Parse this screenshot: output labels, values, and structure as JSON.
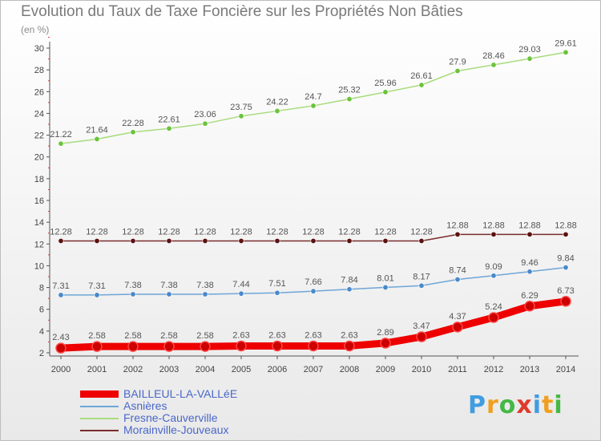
{
  "title": "Evolution du Taux de Taxe Foncière sur les Propriétés Non Bâties",
  "unit_label": "(en %)",
  "brand": {
    "text": "Proxiti",
    "letter_colors": [
      "#3f9de0",
      "#f0a020",
      "#45b845",
      "#e03a2a",
      "#3f9de0",
      "#f0a020",
      "#45b845"
    ]
  },
  "chart_data": {
    "type": "line",
    "title": "Evolution du Taux de Taxe Foncière sur les Propriétés Non Bâties",
    "ylabel": "(en %)",
    "xlabel": "",
    "ylim": [
      2,
      30
    ],
    "y_ticks": [
      2,
      4,
      6,
      8,
      10,
      12,
      14,
      16,
      18,
      20,
      22,
      24,
      26,
      28,
      30
    ],
    "grid": false,
    "legend_position": "bottom-left",
    "x": [
      "2000",
      "2001",
      "2002",
      "2003",
      "2004",
      "2005",
      "2006",
      "2007",
      "2008",
      "2009",
      "2010",
      "2011",
      "2012",
      "2013",
      "2014"
    ],
    "series": [
      {
        "name": "BAILLEUL-LA-VALLéE",
        "color": "#ee0000",
        "marker": "#cc0000",
        "emphasis": true,
        "values": [
          2.43,
          2.58,
          2.58,
          2.58,
          2.58,
          2.63,
          2.63,
          2.63,
          2.63,
          2.89,
          3.47,
          4.37,
          5.24,
          6.29,
          6.73
        ],
        "labels": [
          "2.43",
          "2.58",
          "2.58",
          "2.58",
          "2.58",
          "2.63",
          "2.63",
          "2.63",
          "2.63",
          "2.89",
          "3.47",
          "4.37",
          "5.24",
          "6.29",
          "6.73"
        ]
      },
      {
        "name": "Asnières",
        "color": "#6ea6d8",
        "marker": "#4a88c8",
        "values": [
          7.31,
          7.31,
          7.38,
          7.38,
          7.38,
          7.44,
          7.51,
          7.66,
          7.84,
          8.01,
          8.17,
          8.74,
          9.09,
          9.46,
          9.84
        ],
        "labels": [
          "7.31",
          "7.31",
          "7.38",
          "7.38",
          "7.38",
          "7.44",
          "7.51",
          "7.66",
          "7.84",
          "8.01",
          "8.17",
          "8.74",
          "9.09",
          "9.46",
          "9.84"
        ]
      },
      {
        "name": "Fresne-Cauverville",
        "color": "#a8dc7c",
        "marker": "#6cc23c",
        "values": [
          21.22,
          21.64,
          22.28,
          22.61,
          23.06,
          23.75,
          24.22,
          24.7,
          25.32,
          25.96,
          26.61,
          27.9,
          28.46,
          29.03,
          29.61
        ],
        "labels": [
          "21.22",
          "21.64",
          "22.28",
          "22.61",
          "23.06",
          "23.75",
          "24.22",
          "24.7",
          "25.32",
          "25.96",
          "26.61",
          "27.9",
          "28.46",
          "29.03",
          "29.61"
        ]
      },
      {
        "name": "Morainville-Jouveaux",
        "color": "#7a2c2c",
        "marker": "#5a1212",
        "values": [
          12.28,
          12.28,
          12.28,
          12.28,
          12.28,
          12.28,
          12.28,
          12.28,
          12.28,
          12.28,
          12.28,
          12.88,
          12.88,
          12.88,
          12.88
        ],
        "labels": [
          "12.28",
          "12.28",
          "12.28",
          "12.28",
          "12.28",
          "12.28",
          "12.28",
          "12.28",
          "12.28",
          "12.28",
          "12.28",
          "12.88",
          "12.88",
          "12.88",
          "12.88"
        ]
      }
    ]
  }
}
